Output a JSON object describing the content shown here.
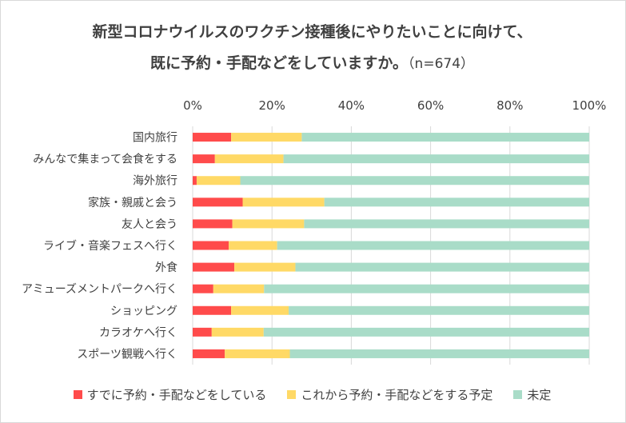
{
  "title_line1": "新型コロナウイルスのワクチン接種後にやりたいことに向けて、",
  "title_line2": "既に予約・手配などをしていますか。",
  "title_n": "（n=674）",
  "colors": {
    "reserved": "#ff4b4b",
    "planning": "#ffd966",
    "undecided": "#a9dcc8",
    "grid": "#d9d9d9",
    "text": "#404040"
  },
  "chart_data": {
    "type": "bar",
    "orientation": "horizontal",
    "stacked": true,
    "percent_stacked": true,
    "xlim": [
      0,
      100
    ],
    "xticks": [
      "0%",
      "20%",
      "40%",
      "60%",
      "80%",
      "100%"
    ],
    "legend_position": "bottom",
    "grid": true,
    "categories": [
      "国内旅行",
      "みんなで集まって会食をする",
      "海外旅行",
      "家族・親戚と会う",
      "友人と会う",
      "ライブ・音楽フェスへ行く",
      "外食",
      "アミューズメントパークへ行く",
      "ショッピング",
      "カラオケへ行く",
      "スポーツ観戦へ行く"
    ],
    "series": [
      {
        "name": "すでに予約・手配などをしている",
        "values": [
          9.7,
          5.6,
          1.0,
          12.6,
          10.0,
          9.1,
          10.5,
          5.2,
          9.7,
          4.8,
          8.1
        ]
      },
      {
        "name": "これから予約・手配などをする予定",
        "values": [
          17.8,
          17.3,
          11.0,
          20.6,
          18.1,
          12.2,
          15.4,
          12.8,
          14.5,
          13.1,
          16.4
        ]
      },
      {
        "name": "未定",
        "values": [
          72.5,
          77.1,
          88.0,
          66.8,
          71.9,
          78.7,
          74.1,
          82.0,
          75.8,
          82.1,
          75.5
        ]
      }
    ]
  }
}
